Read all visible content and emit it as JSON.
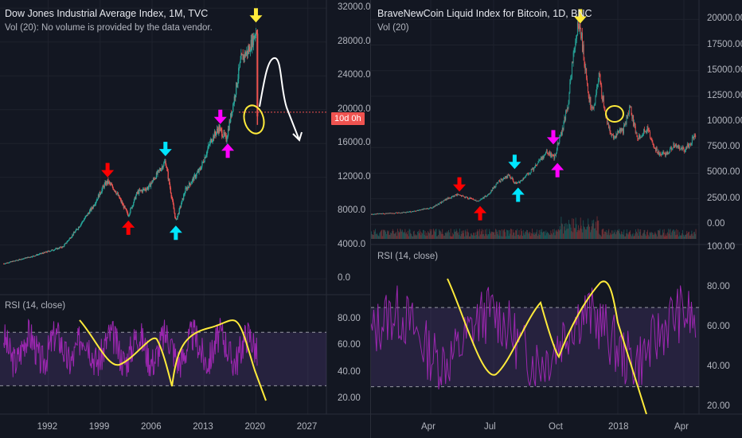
{
  "chart_data": [
    {
      "type": "candlestick",
      "title": "Dow Jones Industrial Average Index, 1M, TVC",
      "volume_note": "Vol (20): No volume is provided by the data vendor.",
      "countdown": "10d 0h",
      "y_ticks": [
        "32000.0",
        "28000.0",
        "24000.0",
        "20000.0",
        "16000.0",
        "12000.0",
        "8000.0",
        "4000.0",
        "0.0"
      ],
      "ylim": [
        -1500,
        32500
      ],
      "rsi_label": "RSI (14, close)",
      "rsi_ticks": [
        "80.00",
        "60.00",
        "40.00",
        "20.00"
      ],
      "rsi_bands": [
        70,
        30
      ],
      "x_ticks": [
        "1992",
        "1999",
        "2006",
        "2013",
        "2020",
        "2027"
      ],
      "price_path": [
        [
          1986,
          1800
        ],
        [
          1990,
          2700
        ],
        [
          1994,
          3800
        ],
        [
          1996,
          6000
        ],
        [
          1998,
          8500
        ],
        [
          1999.5,
          11000
        ],
        [
          2000,
          11500
        ],
        [
          2001,
          10500
        ],
        [
          2002.8,
          7500
        ],
        [
          2004,
          10200
        ],
        [
          2005.5,
          10800
        ],
        [
          2007.8,
          13900
        ],
        [
          2009.2,
          6800
        ],
        [
          2010.5,
          10500
        ],
        [
          2012.5,
          13000
        ],
        [
          2014,
          16500
        ],
        [
          2015,
          17800
        ],
        [
          2016,
          16500
        ],
        [
          2017,
          21000
        ],
        [
          2018,
          26000
        ],
        [
          2019,
          27000
        ],
        [
          2020.1,
          29500
        ],
        [
          2020.25,
          19200
        ]
      ],
      "annotations": [
        {
          "kind": "arrow-down",
          "color": "#ff0000",
          "x": 2000,
          "y": 13700
        },
        {
          "kind": "arrow-up",
          "color": "#ff0000",
          "x": 2002.8,
          "y": 5200
        },
        {
          "kind": "arrow-down",
          "color": "#00e5ff",
          "x": 2007.8,
          "y": 16200
        },
        {
          "kind": "arrow-up",
          "color": "#00e5ff",
          "x": 2009.2,
          "y": 4600
        },
        {
          "kind": "arrow-down",
          "color": "#ff00ff",
          "x": 2015.2,
          "y": 20000
        },
        {
          "kind": "arrow-up",
          "color": "#ff00ff",
          "x": 2016.2,
          "y": 14300
        },
        {
          "kind": "arrow-down",
          "color": "#ffeb3b",
          "x": 2020,
          "y": 32000
        }
      ]
    },
    {
      "type": "candlestick",
      "title": "BraveNewCoin Liquid Index for Bitcoin, 1D, BNC",
      "volume_note": "Vol (20)",
      "y_ticks": [
        "20000.00",
        "17500.00",
        "15000.00",
        "12500.00",
        "10000.00",
        "7500.00",
        "5000.00",
        "2500.00",
        "0.00"
      ],
      "ylim": [
        -1800,
        21500
      ],
      "rsi_label": "RSI (14, close)",
      "rsi_ticks": [
        "100.00",
        "80.00",
        "60.00",
        "40.00",
        "20.00"
      ],
      "rsi_bands": [
        70,
        30
      ],
      "x_ticks": [
        "Apr",
        "Jul",
        "Oct",
        "2018",
        "Apr"
      ],
      "price_path": [
        [
          0,
          1000
        ],
        [
          30,
          1100
        ],
        [
          60,
          1250
        ],
        [
          90,
          1700
        ],
        [
          110,
          2500
        ],
        [
          125,
          2900
        ],
        [
          140,
          2600
        ],
        [
          155,
          2300
        ],
        [
          170,
          2900
        ],
        [
          185,
          4200
        ],
        [
          200,
          4800
        ],
        [
          210,
          3900
        ],
        [
          220,
          4400
        ],
        [
          240,
          5800
        ],
        [
          255,
          7200
        ],
        [
          265,
          6500
        ],
        [
          275,
          8800
        ],
        [
          285,
          11500
        ],
        [
          292,
          16000
        ],
        [
          300,
          19500
        ],
        [
          305,
          18000
        ],
        [
          315,
          12500
        ],
        [
          322,
          11000
        ],
        [
          330,
          14500
        ],
        [
          340,
          10500
        ],
        [
          350,
          8500
        ],
        [
          365,
          9200
        ],
        [
          375,
          11500
        ],
        [
          385,
          8500
        ],
        [
          400,
          9200
        ],
        [
          415,
          7000
        ],
        [
          425,
          6800
        ],
        [
          440,
          7800
        ],
        [
          455,
          7200
        ],
        [
          470,
          8800
        ]
      ],
      "annotations": [
        {
          "kind": "arrow-down",
          "color": "#ff0000",
          "x": 128,
          "y": 4600
        },
        {
          "kind": "arrow-up",
          "color": "#ff0000",
          "x": 158,
          "y": 400
        },
        {
          "kind": "arrow-down",
          "color": "#00e5ff",
          "x": 208,
          "y": 6800
        },
        {
          "kind": "arrow-up",
          "color": "#00e5ff",
          "x": 213,
          "y": 2200
        },
        {
          "kind": "arrow-down",
          "color": "#ff00ff",
          "x": 264,
          "y": 9200
        },
        {
          "kind": "arrow-up",
          "color": "#ff00ff",
          "x": 270,
          "y": 4600
        },
        {
          "kind": "arrow-down",
          "color": "#ffeb3b",
          "x": 303,
          "y": 21000
        }
      ]
    }
  ],
  "colors": {
    "background": "#131722",
    "up": "#26a69a",
    "down": "#ef5350",
    "rsi_line": "#9c27b0",
    "rsi_band": "rgba(126,87,194,0.18)",
    "drawing": "#ffeb3b"
  }
}
